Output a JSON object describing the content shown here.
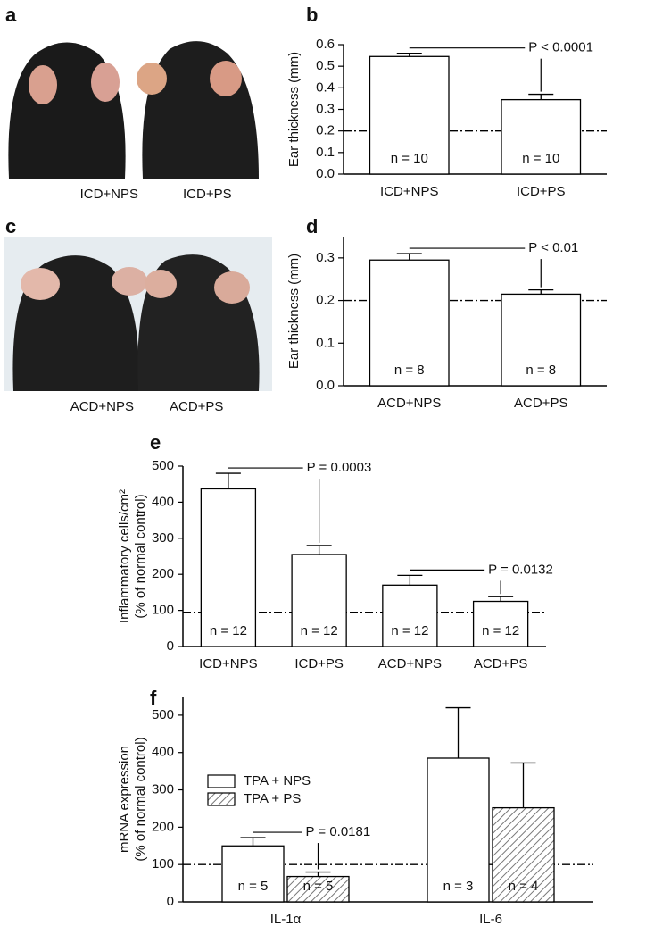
{
  "panel_labels": [
    "a",
    "b",
    "c",
    "d",
    "e",
    "f"
  ],
  "photos": [
    {
      "captions": [
        "ICD+NPS",
        "ICD+PS"
      ]
    },
    {
      "captions": [
        "ACD+NPS",
        "ACD+PS"
      ]
    }
  ],
  "chart_data": [
    {
      "type": "bar",
      "ylabel": [
        "Ear thickness (mm)"
      ],
      "categories": [
        "ICD+NPS",
        "ICD+PS"
      ],
      "values": [
        0.545,
        0.345
      ],
      "errors": [
        0.015,
        0.025
      ],
      "n_labels": [
        "n = 10",
        "n = 10"
      ],
      "color": "#ffffff",
      "ylim": [
        0,
        0.6
      ],
      "yticks": [
        {
          "value": 0,
          "label": "0.0"
        },
        0.1,
        0.2,
        0.3,
        0.4,
        0.5,
        0.6
      ],
      "reference_line": 0.2,
      "annotations": [
        "P < 0.0001"
      ]
    },
    {
      "type": "bar",
      "ylabel": [
        "Ear thickness (mm)"
      ],
      "categories": [
        "ACD+NPS",
        "ACD+PS"
      ],
      "values": [
        0.295,
        0.215
      ],
      "errors": [
        0.015,
        0.01
      ],
      "n_labels": [
        "n = 8",
        "n = 8"
      ],
      "color": "#ffffff",
      "ylim": [
        0,
        0.35
      ],
      "yticks": [
        {
          "value": 0,
          "label": "0.0"
        },
        0.1,
        0.2,
        0.3
      ],
      "reference_line": 0.2,
      "annotations": [
        "P < 0.01"
      ]
    },
    {
      "type": "bar",
      "ylabel": [
        "Inflammatory cells/cm²",
        "(% of normal control)"
      ],
      "categories": [
        "ICD+NPS",
        "ICD+PS",
        "ACD+NPS",
        "ACD+PS"
      ],
      "values": [
        437,
        255,
        170,
        125
      ],
      "errors": [
        43,
        25,
        27,
        13
      ],
      "n_labels": [
        "n = 12",
        "n = 12",
        "n = 12",
        "n = 12"
      ],
      "color": "#ffffff",
      "ylim": [
        0,
        500
      ],
      "yticks": [
        0,
        100,
        200,
        300,
        400,
        500
      ],
      "reference_line": 95,
      "annotations": [
        "P = 0.0003",
        "P = 0.0132"
      ]
    },
    {
      "type": "grouped_bar",
      "ylabel": [
        "mRNA expression",
        "(% of normal control)"
      ],
      "categories": [
        "IL-1α",
        "IL-6"
      ],
      "series": [
        {
          "name": "TPA + NPS",
          "color": "#ffffff",
          "hatch": false,
          "values": [
            150,
            385
          ],
          "errors": [
            22,
            135
          ],
          "n_labels": [
            "n = 5",
            "n = 3"
          ]
        },
        {
          "name": "TPA + PS",
          "color": "#ffffff",
          "hatch": true,
          "values": [
            68,
            252
          ],
          "errors": [
            12,
            120
          ],
          "n_labels": [
            "n = 5",
            "n = 4"
          ]
        }
      ],
      "ylim": [
        0,
        550
      ],
      "yticks": [
        0,
        100,
        200,
        300,
        400,
        500
      ],
      "reference_line": 100,
      "legend": "upper left",
      "annotations": [
        "P = 0.0181"
      ]
    }
  ]
}
